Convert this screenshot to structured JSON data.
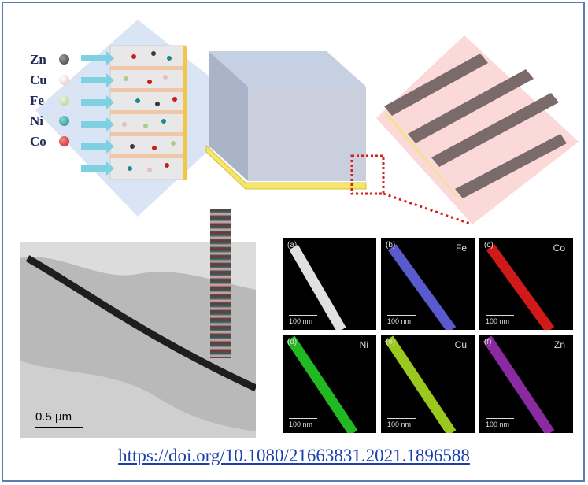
{
  "legend": [
    {
      "symbol": "Zn",
      "color": "#3a3a3a"
    },
    {
      "symbol": "Cu",
      "color": "#e8bcc0"
    },
    {
      "symbol": "Fe",
      "color": "#a8d08a"
    },
    {
      "symbol": "Ni",
      "color": "#1f8a8a"
    },
    {
      "symbol": "Co",
      "color": "#c81e1e"
    }
  ],
  "tem": {
    "scale_label": "0.5 μm"
  },
  "eds_panels": [
    {
      "tag": "(a)",
      "element": "",
      "scale": "100 nm",
      "color": "#e0e0e0"
    },
    {
      "tag": "(b)",
      "element": "Fe",
      "scale": "100 nm",
      "color": "#5a5acf"
    },
    {
      "tag": "(c)",
      "element": "Co",
      "scale": "100 nm",
      "color": "#d01a1a"
    },
    {
      "tag": "(d)",
      "element": "Ni",
      "scale": "100 nm",
      "color": "#22b822"
    },
    {
      "tag": "(e)",
      "element": "Cu",
      "scale": "100 nm",
      "color": "#9ac81e"
    },
    {
      "tag": "(f)",
      "element": "Zn",
      "scale": "100 nm",
      "color": "#8a2aa0"
    }
  ],
  "doi_link": "https://doi.org/10.1080/21663831.2021.1896588"
}
